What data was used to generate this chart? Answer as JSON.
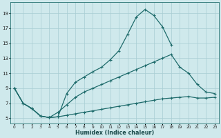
{
  "xlabel": "Humidex (Indice chaleur)",
  "bg_color": "#cfe9ec",
  "grid_color": "#a8cdd3",
  "line_color": "#1e6b6b",
  "xlim": [
    -0.5,
    23.5
  ],
  "ylim": [
    4.3,
    20.5
  ],
  "xticks": [
    0,
    1,
    2,
    3,
    4,
    5,
    6,
    7,
    8,
    9,
    10,
    11,
    12,
    13,
    14,
    15,
    16,
    17,
    18,
    19,
    20,
    21,
    22,
    23
  ],
  "yticks": [
    5,
    7,
    9,
    11,
    13,
    15,
    17,
    19
  ],
  "line1_x": [
    0,
    1,
    2,
    3,
    4,
    5,
    6,
    7,
    8,
    9,
    10,
    11,
    12,
    13,
    14,
    15,
    16,
    17,
    18
  ],
  "line1_y": [
    9.0,
    7.0,
    6.3,
    5.3,
    5.1,
    5.2,
    8.3,
    9.8,
    10.5,
    11.2,
    11.8,
    12.8,
    14.0,
    16.2,
    18.5,
    19.5,
    18.7,
    17.2,
    14.8
  ],
  "line2_x": [
    0,
    1,
    2,
    3,
    4,
    5,
    6,
    7,
    8,
    9,
    10,
    11,
    12,
    13,
    14,
    15,
    16,
    17,
    18,
    19,
    20,
    21,
    22,
    23
  ],
  "line2_y": [
    9.0,
    7.0,
    6.3,
    5.3,
    5.1,
    5.8,
    6.8,
    7.8,
    8.5,
    9.0,
    9.5,
    10.0,
    10.5,
    11.0,
    11.5,
    12.0,
    12.5,
    13.0,
    13.5,
    11.8,
    11.0,
    9.5,
    8.5,
    8.3
  ],
  "line3_x": [
    0,
    1,
    2,
    3,
    4,
    5,
    6,
    7,
    8,
    9,
    10,
    11,
    12,
    13,
    14,
    15,
    16,
    17,
    18,
    19,
    20,
    21,
    22,
    23
  ],
  "line3_y": [
    9.0,
    7.0,
    6.3,
    5.3,
    5.1,
    5.2,
    5.4,
    5.6,
    5.8,
    6.0,
    6.2,
    6.4,
    6.6,
    6.8,
    7.0,
    7.2,
    7.4,
    7.6,
    7.7,
    7.8,
    7.9,
    7.7,
    7.7,
    7.8
  ]
}
